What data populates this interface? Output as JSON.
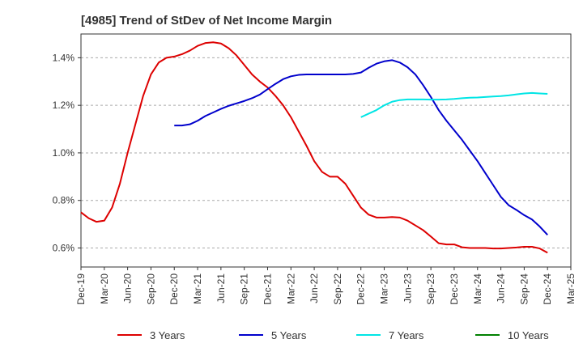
{
  "chart_data": {
    "type": "line",
    "title": "[4985]  Trend of StDev of Net Income Margin",
    "xlabel": "",
    "ylabel": "",
    "x_ticks": [
      "Dec-19",
      "Mar-20",
      "Jun-20",
      "Sep-20",
      "Dec-20",
      "Mar-21",
      "Jun-21",
      "Sep-21",
      "Dec-21",
      "Mar-22",
      "Jun-22",
      "Sep-22",
      "Dec-22",
      "Mar-23",
      "Jun-23",
      "Sep-23",
      "Dec-23",
      "Mar-24",
      "Jun-24",
      "Sep-24",
      "Dec-24",
      "Mar-25"
    ],
    "y_ticks": [
      "0.6%",
      "0.8%",
      "1.0%",
      "1.2%",
      "1.4%"
    ],
    "y_tick_values": [
      0.6,
      0.8,
      1.0,
      1.2,
      1.4
    ],
    "ylim": [
      0.52,
      1.5
    ],
    "grid": "horizontal dashed",
    "legend_position": "bottom",
    "series": [
      {
        "name": "3 Years",
        "color": "#dd0000",
        "x": [
          "Dec-19",
          "Jan-20",
          "Feb-20",
          "Mar-20",
          "Apr-20",
          "May-20",
          "Jun-20",
          "Jul-20",
          "Aug-20",
          "Sep-20",
          "Oct-20",
          "Nov-20",
          "Dec-20",
          "Jan-21",
          "Feb-21",
          "Mar-21",
          "Apr-21",
          "May-21",
          "Jun-21",
          "Jul-21",
          "Aug-21",
          "Sep-21",
          "Oct-21",
          "Nov-21",
          "Dec-21",
          "Jan-22",
          "Feb-22",
          "Mar-22",
          "Apr-22",
          "May-22",
          "Jun-22",
          "Jul-22",
          "Aug-22",
          "Sep-22",
          "Oct-22",
          "Nov-22",
          "Dec-22",
          "Jan-23",
          "Feb-23",
          "Mar-23",
          "Apr-23",
          "May-23",
          "Jun-23",
          "Jul-23",
          "Aug-23",
          "Sep-23",
          "Oct-23",
          "Nov-23",
          "Dec-23",
          "Jan-24",
          "Feb-24",
          "Mar-24",
          "Apr-24",
          "May-24",
          "Jun-24",
          "Jul-24",
          "Aug-24",
          "Sep-24",
          "Oct-24",
          "Nov-24",
          "Dec-24"
        ],
        "values": [
          0.75,
          0.725,
          0.71,
          0.715,
          0.77,
          0.87,
          1.0,
          1.12,
          1.24,
          1.33,
          1.38,
          1.4,
          1.405,
          1.415,
          1.43,
          1.45,
          1.462,
          1.465,
          1.46,
          1.44,
          1.41,
          1.37,
          1.33,
          1.3,
          1.275,
          1.24,
          1.2,
          1.15,
          1.09,
          1.03,
          0.965,
          0.92,
          0.9,
          0.9,
          0.87,
          0.82,
          0.77,
          0.74,
          0.728,
          0.728,
          0.73,
          0.728,
          0.715,
          0.695,
          0.675,
          0.648,
          0.62,
          0.615,
          0.615,
          0.603,
          0.6,
          0.6,
          0.6,
          0.598,
          0.598,
          0.6,
          0.602,
          0.605,
          0.605,
          0.598,
          0.58
        ]
      },
      {
        "name": "5 Years",
        "color": "#0000cc",
        "x": [
          "Dec-20",
          "Jan-21",
          "Feb-21",
          "Mar-21",
          "Apr-21",
          "May-21",
          "Jun-21",
          "Jul-21",
          "Aug-21",
          "Sep-21",
          "Oct-21",
          "Nov-21",
          "Dec-21",
          "Jan-22",
          "Feb-22",
          "Mar-22",
          "Apr-22",
          "May-22",
          "Jun-22",
          "Jul-22",
          "Aug-22",
          "Sep-22",
          "Oct-22",
          "Nov-22",
          "Dec-22",
          "Jan-23",
          "Feb-23",
          "Mar-23",
          "Apr-23",
          "May-23",
          "Jun-23",
          "Jul-23",
          "Aug-23",
          "Sep-23",
          "Oct-23",
          "Nov-23",
          "Dec-23",
          "Jan-24",
          "Feb-24",
          "Mar-24",
          "Apr-24",
          "May-24",
          "Jun-24",
          "Jul-24",
          "Aug-24",
          "Sep-24",
          "Oct-24",
          "Nov-24",
          "Dec-24"
        ],
        "values": [
          1.115,
          1.115,
          1.12,
          1.135,
          1.155,
          1.17,
          1.185,
          1.198,
          1.208,
          1.218,
          1.23,
          1.245,
          1.268,
          1.29,
          1.31,
          1.322,
          1.328,
          1.33,
          1.33,
          1.33,
          1.33,
          1.33,
          1.33,
          1.332,
          1.338,
          1.358,
          1.375,
          1.385,
          1.39,
          1.38,
          1.36,
          1.33,
          1.285,
          1.235,
          1.18,
          1.135,
          1.095,
          1.055,
          1.01,
          0.965,
          0.915,
          0.865,
          0.815,
          0.78,
          0.76,
          0.738,
          0.72,
          0.69,
          0.655
        ]
      },
      {
        "name": "7 Years",
        "color": "#00e5e5",
        "x": [
          "Dec-22",
          "Jan-23",
          "Feb-23",
          "Mar-23",
          "Apr-23",
          "May-23",
          "Jun-23",
          "Jul-23",
          "Aug-23",
          "Sep-23",
          "Oct-23",
          "Nov-23",
          "Dec-23",
          "Jan-24",
          "Feb-24",
          "Mar-24",
          "Apr-24",
          "May-24",
          "Jun-24",
          "Jul-24",
          "Aug-24",
          "Sep-24",
          "Oct-24",
          "Nov-24",
          "Dec-24"
        ],
        "values": [
          1.15,
          1.165,
          1.18,
          1.2,
          1.215,
          1.222,
          1.225,
          1.225,
          1.225,
          1.224,
          1.224,
          1.225,
          1.227,
          1.23,
          1.232,
          1.233,
          1.235,
          1.237,
          1.239,
          1.242,
          1.246,
          1.25,
          1.252,
          1.25,
          1.248
        ]
      },
      {
        "name": "10 Years",
        "color": "#008000",
        "x": [],
        "values": []
      }
    ]
  }
}
